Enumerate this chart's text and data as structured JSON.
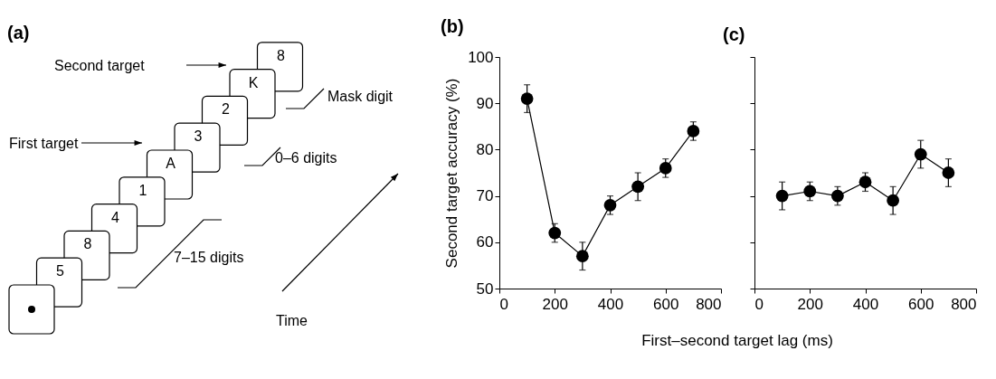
{
  "chart_data": [
    {
      "type": "other",
      "title": "(a)",
      "annotations": [
        "5",
        "8",
        "4",
        "1",
        "A",
        "3",
        "2",
        "K",
        "8",
        "Second target",
        "First target",
        "Mask digit",
        "0–6 digits",
        "7–15 digits",
        "Time"
      ]
    },
    {
      "type": "line",
      "title": "(b)",
      "xlabel": "First–second target lag (ms)",
      "ylabel": "Second target accuracy (%)",
      "x": [
        100,
        200,
        300,
        400,
        500,
        600,
        700
      ],
      "series": [
        {
          "color": "#000000",
          "values": [
            91,
            62,
            57,
            68,
            72,
            76,
            84
          ],
          "errors": [
            3,
            2,
            3,
            2,
            3,
            2,
            2
          ]
        }
      ],
      "xlim": [
        0,
        800
      ],
      "xticks": [
        0,
        200,
        400,
        600,
        800
      ],
      "ylim": [
        50,
        100
      ],
      "yticks": [
        50,
        60,
        70,
        80,
        90,
        100
      ],
      "grid": false,
      "marker": "circle",
      "line_style": "solid"
    },
    {
      "type": "line",
      "title": "(c)",
      "x": [
        100,
        200,
        300,
        400,
        500,
        600,
        700
      ],
      "series": [
        {
          "color": "#000000",
          "values": [
            70,
            71,
            70,
            73,
            69,
            79,
            75
          ],
          "errors": [
            3,
            2,
            2,
            2,
            3,
            3,
            3
          ]
        }
      ],
      "xlim": [
        0,
        800
      ],
      "xticks": [
        0,
        200,
        400,
        600,
        800
      ],
      "ylim": [
        50,
        100
      ],
      "yticks": [
        50,
        60,
        70,
        80,
        90,
        100
      ],
      "grid": false,
      "marker": "circle",
      "line_style": "solid",
      "tick_labels": "x"
    }
  ]
}
